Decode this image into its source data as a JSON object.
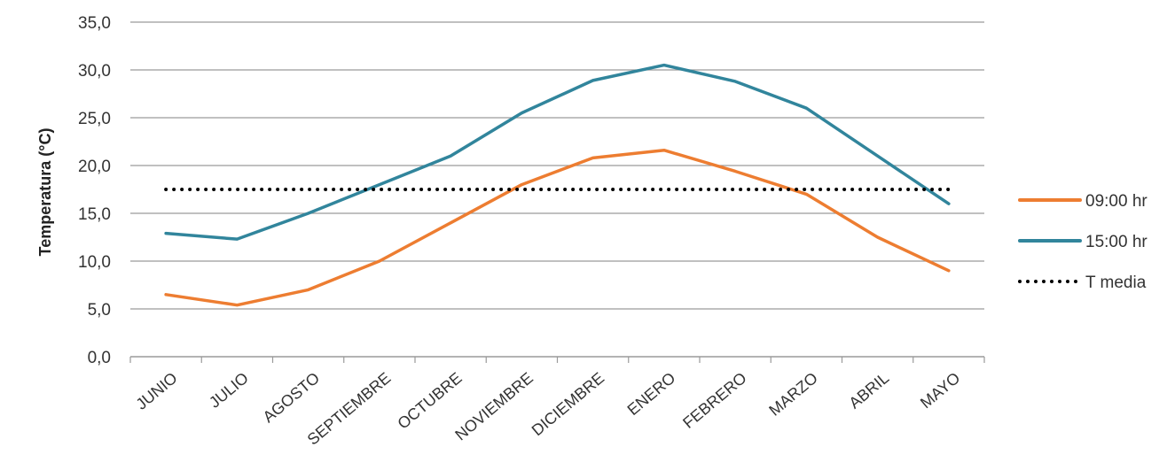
{
  "chart_data": {
    "type": "line",
    "title": "",
    "xlabel": "",
    "ylabel": "Temperatura (°C)",
    "categories": [
      "JUNIO",
      "JULIO",
      "AGOSTO",
      "SEPTIEMBRE",
      "OCTUBRE",
      "NOVIEMBRE",
      "DICIEMBRE",
      "ENERO",
      "FEBRERO",
      "MARZO",
      "ABRIL",
      "MAYO"
    ],
    "ylim": [
      0,
      35
    ],
    "yticks": [
      "0,0",
      "5,0",
      "10,0",
      "15,0",
      "20,0",
      "25,0",
      "30,0",
      "35,0"
    ],
    "grid": true,
    "legend_position": "right",
    "series": [
      {
        "name": "09:00 hr",
        "color": "#ED7D31",
        "style": "solid",
        "values": [
          6.5,
          5.4,
          7.0,
          10.0,
          14.0,
          18.0,
          20.8,
          21.6,
          19.4,
          17.0,
          12.5,
          9.0
        ]
      },
      {
        "name": "15:00 hr",
        "color": "#31859C",
        "style": "solid",
        "values": [
          12.9,
          12.3,
          15.0,
          18.0,
          21.0,
          25.5,
          28.9,
          30.5,
          28.8,
          26.0,
          21.0,
          16.0
        ]
      },
      {
        "name": "T media",
        "color": "#000000",
        "style": "dotted",
        "values": [
          17.5,
          17.5,
          17.5,
          17.5,
          17.5,
          17.5,
          17.5,
          17.5,
          17.5,
          17.5,
          17.5,
          17.5
        ]
      }
    ]
  }
}
